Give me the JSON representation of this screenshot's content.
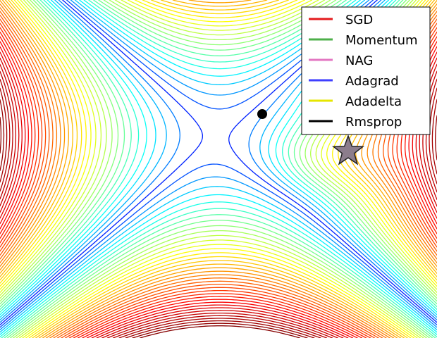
{
  "chart_data": {
    "type": "line",
    "title": "",
    "xlabel": "",
    "ylabel": "",
    "grid": false,
    "legend_position": "top-right",
    "plot_kind": "contour",
    "colormap": "jet",
    "series": [
      {
        "name": "SGD",
        "color": "#e41a1c"
      },
      {
        "name": "Momentum",
        "color": "#4daf4a"
      },
      {
        "name": "NAG",
        "color": "#e377c2"
      },
      {
        "name": "Adagrad",
        "color": "#3f3fff"
      },
      {
        "name": "Adadelta",
        "color": "#e6e600"
      },
      {
        "name": "Rmsprop",
        "color": "#000000"
      }
    ],
    "start_point_color": "#000000",
    "minimum_marker": {
      "shape": "star",
      "fill": "#8c7d8c",
      "stroke": "#222222"
    }
  }
}
